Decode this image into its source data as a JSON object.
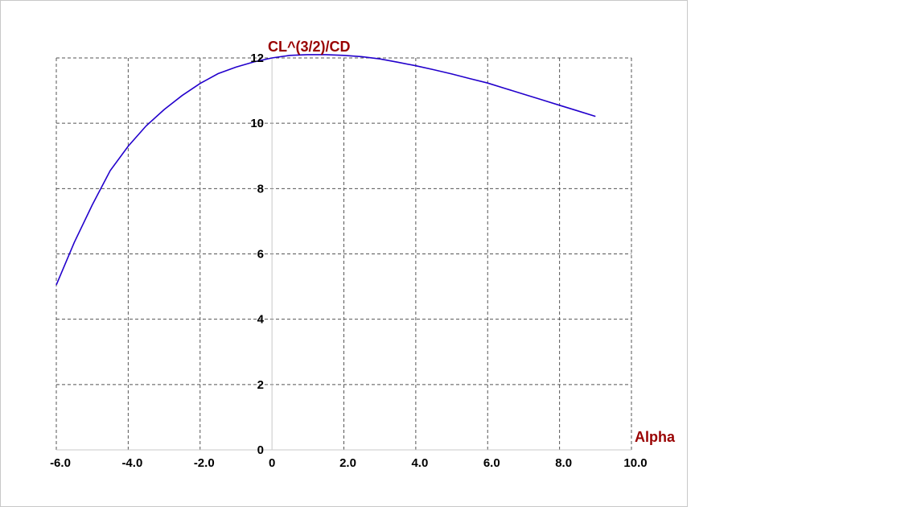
{
  "chart_data": {
    "type": "line",
    "title": "CL^(3/2)/CD",
    "xlabel": "Alpha",
    "ylabel": "CL^(3/2)/CD",
    "xlim": [
      -6,
      10
    ],
    "ylim": [
      0,
      12
    ],
    "x_ticks": [
      -6,
      -4,
      -2,
      0,
      2,
      4,
      6,
      8,
      10
    ],
    "x_tick_labels": [
      "-6.0",
      "-4.0",
      "-2.0",
      "0",
      "2.0",
      "4.0",
      "6.0",
      "8.0",
      "10.0"
    ],
    "y_ticks": [
      0,
      2,
      4,
      6,
      8,
      10,
      12
    ],
    "y_tick_labels": [
      "0",
      "2",
      "4",
      "6",
      "8",
      "10",
      "12"
    ],
    "grid": true,
    "series": [
      {
        "name": "CL^(3/2)/CD",
        "color": "#2200cc",
        "x": [
          -6.0,
          -5.5,
          -5.0,
          -4.5,
          -4.0,
          -3.5,
          -3.0,
          -2.5,
          -2.0,
          -1.5,
          -1.0,
          -0.5,
          0.0,
          0.5,
          1.0,
          1.5,
          2.0,
          2.5,
          3.0,
          3.5,
          4.0,
          4.5,
          5.0,
          5.5,
          6.0,
          6.5,
          7.0,
          7.5,
          8.0,
          8.5,
          9.0
        ],
        "values": [
          5.05,
          6.35,
          7.5,
          8.55,
          9.3,
          9.92,
          10.42,
          10.85,
          11.22,
          11.52,
          11.72,
          11.88,
          12.0,
          12.08,
          12.1,
          12.1,
          12.08,
          12.04,
          11.97,
          11.87,
          11.76,
          11.64,
          11.51,
          11.37,
          11.23,
          11.06,
          10.89,
          10.72,
          10.55,
          10.38,
          10.21
        ]
      }
    ],
    "colors": {
      "title": "#990000",
      "xlabel": "#990000",
      "tick_labels": "#000000",
      "grid": "#555555"
    }
  }
}
